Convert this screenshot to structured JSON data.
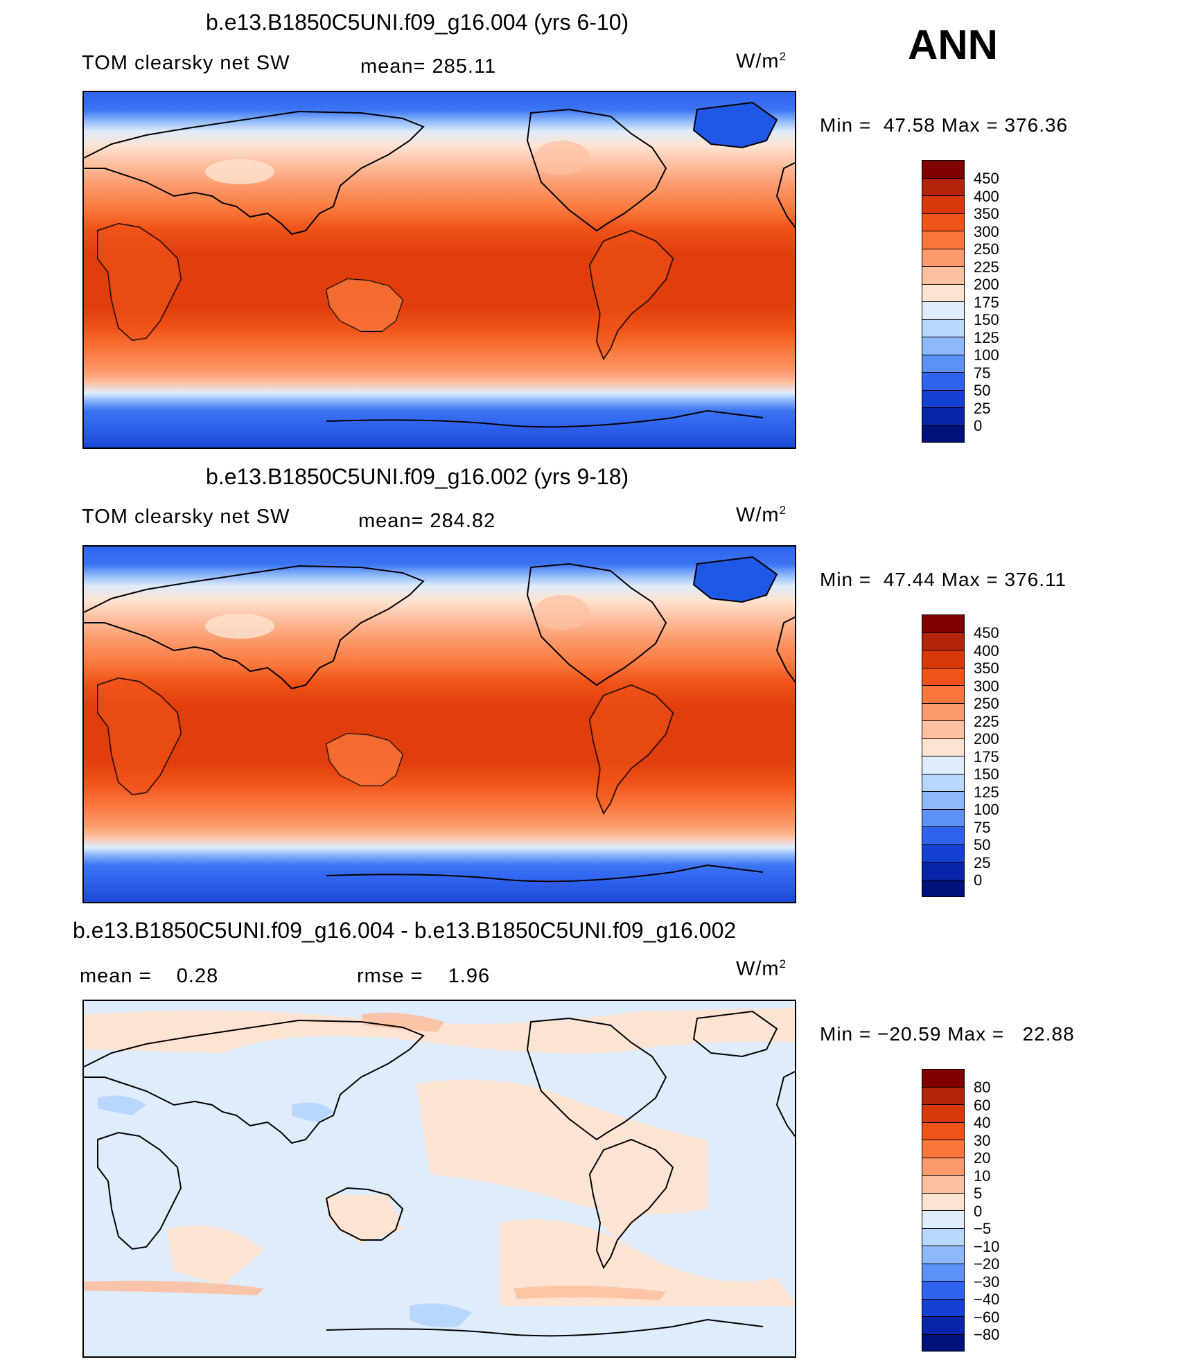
{
  "season": "ANN",
  "panels": [
    {
      "title": "b.e13.B1850C5UNI.f09_g16.004 (yrs 6-10)",
      "left_label": "TOM clearsky net SW",
      "mean_label": "mean= 285.11",
      "units": "W/m",
      "units_sup": "2",
      "min_label": "Min =",
      "min_value": "47.58",
      "max_label": "Max =",
      "max_value": "376.36",
      "colorbar_ticks": [
        "450",
        "400",
        "350",
        "300",
        "250",
        "225",
        "200",
        "175",
        "150",
        "125",
        "100",
        "75",
        "50",
        "25",
        "0"
      ],
      "colorbar_colors": [
        "#7f0000",
        "#b3240b",
        "#d9380a",
        "#f0531a",
        "#f9773b",
        "#fc9a6c",
        "#fdc0a1",
        "#fde3d1",
        "#deecfb",
        "#b9d6fc",
        "#8db8fb",
        "#5c92f6",
        "#2f63ef",
        "#1540d4",
        "#0824a8",
        "#00127a"
      ]
    },
    {
      "title": "b.e13.B1850C5UNI.f09_g16.002 (yrs 9-18)",
      "left_label": "TOM clearsky net SW",
      "mean_label": "mean= 284.82",
      "units": "W/m",
      "units_sup": "2",
      "min_label": "Min =",
      "min_value": "47.44",
      "max_label": "Max =",
      "max_value": "376.11",
      "colorbar_ticks": [
        "450",
        "400",
        "350",
        "300",
        "250",
        "225",
        "200",
        "175",
        "150",
        "125",
        "100",
        "75",
        "50",
        "25",
        "0"
      ],
      "colorbar_colors": [
        "#7f0000",
        "#b3240b",
        "#d9380a",
        "#f0531a",
        "#f9773b",
        "#fc9a6c",
        "#fdc0a1",
        "#fde3d1",
        "#deecfb",
        "#b9d6fc",
        "#8db8fb",
        "#5c92f6",
        "#2f63ef",
        "#1540d4",
        "#0824a8",
        "#00127a"
      ]
    },
    {
      "title": "b.e13.B1850C5UNI.f09_g16.004 - b.e13.B1850C5UNI.f09_g16.002",
      "mean_label": "mean =",
      "mean_value": "0.28",
      "rmse_label": "rmse =",
      "rmse_value": "1.96",
      "units": "W/m",
      "units_sup": "2",
      "min_label": "Min =",
      "min_value": "−20.59",
      "max_label": "Max =",
      "max_value": "22.88",
      "colorbar_ticks": [
        "80",
        "60",
        "40",
        "30",
        "20",
        "10",
        "5",
        "0",
        "−5",
        "−10",
        "−20",
        "−30",
        "−40",
        "−60",
        "−80"
      ],
      "colorbar_colors": [
        "#7f0000",
        "#b3240b",
        "#d9380a",
        "#f0531a",
        "#f9773b",
        "#fc9a6c",
        "#fdc0a1",
        "#fde3d1",
        "#deecfb",
        "#b9d6fc",
        "#8db8fb",
        "#5c92f6",
        "#2f63ef",
        "#1540d4",
        "#0824a8",
        "#00127a"
      ]
    }
  ]
}
